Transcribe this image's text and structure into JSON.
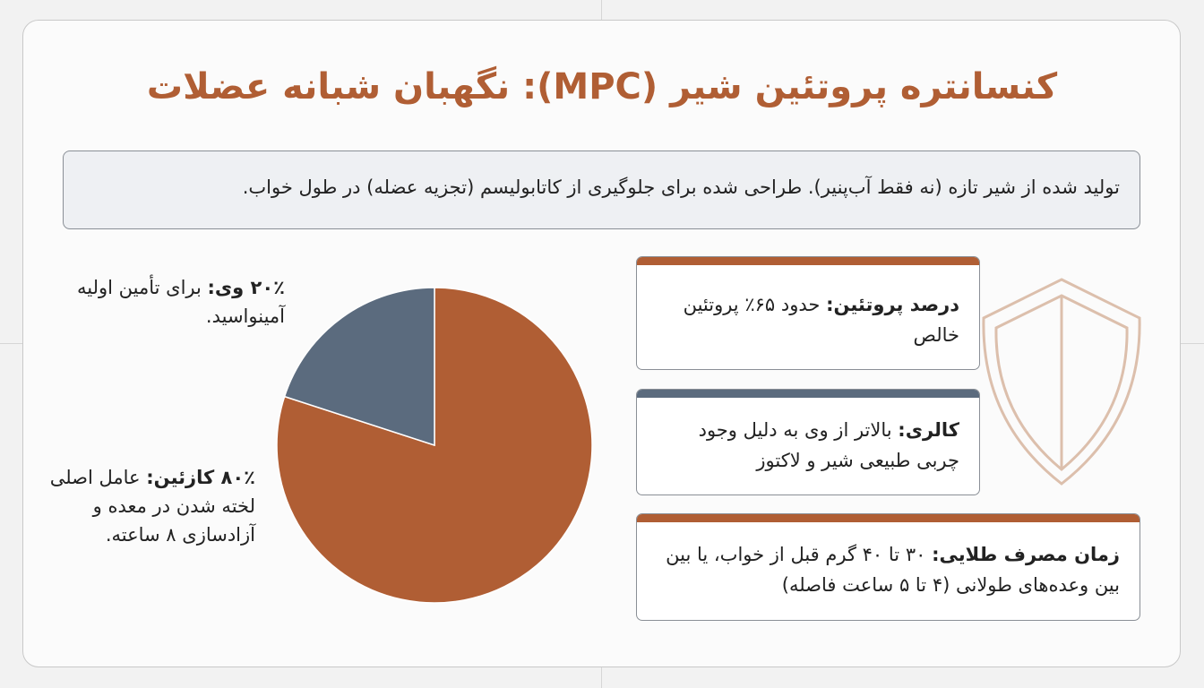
{
  "header": {
    "title": "کنسانتره پروتئین شیر (MPC): نگهبان شبانه عضلات",
    "subtitle": "تولید شده از شیر تازه (نه فقط آب‌پنیر). طراحی شده برای جلوگیری از کاتابولیسم (تجزیه عضله) در طول خواب."
  },
  "chart_data": {
    "type": "pie",
    "categories": [
      "کازئین:",
      "وی:"
    ],
    "values": [
      80,
      20
    ],
    "value_labels": [
      "۸۰٪",
      "۲۰٪"
    ],
    "descriptions": [
      "عامل اصلی لخته شدن در معده و آزادسازی ۸ ساعته.",
      "برای تأمین اولیه آمینواسید."
    ],
    "colors": [
      "#b05e34",
      "#5b6b7e"
    ]
  },
  "cards": [
    {
      "label": "درصد پروتئین:",
      "text": "حدود ۶۵٪ پروتئین خالص",
      "color": "#b05e34"
    },
    {
      "label": "کالری:",
      "text": "بالاتر از وی به دلیل وجود چربی طبیعی شیر و لاکتوز",
      "color": "#5b6b7e"
    },
    {
      "label": "زمان مصرف طلایی:",
      "text": "۳۰ تا ۴۰ گرم قبل از خواب، یا بین بین وعده‌های طولانی (۴ تا ۵ ساعت فاصله)",
      "color": "#b05e34"
    }
  ]
}
